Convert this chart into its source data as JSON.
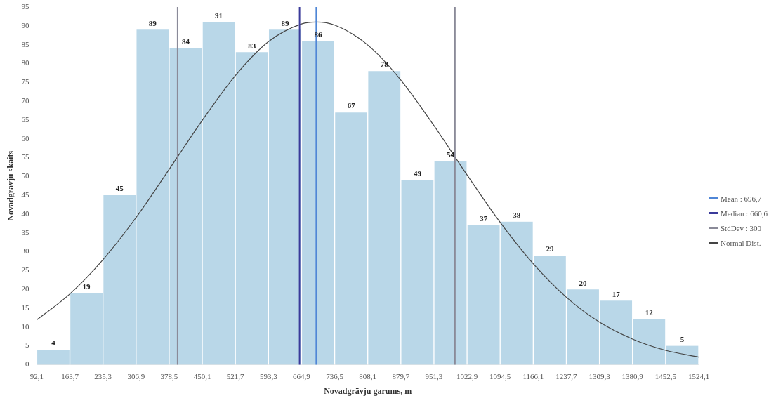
{
  "chart_data": {
    "type": "histogram",
    "xlabel": "Novadgrāvju garums, m",
    "ylabel": "Novadgrāvju skaits",
    "bins": [
      92.1,
      163.7,
      235.3,
      306.9,
      378.5,
      450.1,
      521.7,
      593.3,
      664.9,
      736.5,
      808.1,
      879.7,
      951.3,
      1022.9,
      1094.5,
      1166.1,
      1237.7,
      1309.3,
      1380.9,
      1452.5,
      1524.1
    ],
    "values": [
      4,
      19,
      45,
      89,
      84,
      91,
      83,
      89,
      86,
      67,
      78,
      49,
      54,
      37,
      38,
      29,
      20,
      17,
      12,
      5
    ],
    "color": "#b9d7e8",
    "value_labels": [
      "4",
      "19",
      "45",
      "89",
      "84",
      "91",
      "83",
      "89",
      "86",
      "67",
      "78",
      "49",
      "54",
      "37",
      "38",
      "29",
      "20",
      "17",
      "12",
      "5"
    ],
    "annotations": [
      "Mean : 696,7",
      "Median : 660,6",
      "StdDev : 300"
    ],
    "series": [
      {
        "type": "line",
        "name": "Normal Dist.",
        "color": "#444444",
        "x": [
          92.1,
          163.7,
          235.3,
          306.9,
          378.5,
          450.1,
          521.7,
          593.3,
          664.9,
          696.7,
          736.5,
          808.1,
          879.7,
          951.3,
          1022.9,
          1094.5,
          1166.1,
          1237.7,
          1309.3,
          1380.9,
          1452.5,
          1524.1
        ],
        "values": [
          11.9,
          18.8,
          27.9,
          39.1,
          51.9,
          64.9,
          76.8,
          85.8,
          90.5,
          91,
          90.2,
          84.9,
          75.6,
          63.5,
          50.4,
          37.8,
          26.8,
          17.9,
          11.3,
          6.8,
          3.8,
          2.0
        ]
      }
    ],
    "ref_lines": [
      {
        "axis": "x",
        "value": 696.7,
        "color": "#4f86d6"
      },
      {
        "axis": "x",
        "value": 660.6,
        "color": "#3a3a9a"
      },
      {
        "axis": "x",
        "value": 396.7,
        "color": "#8a8a98"
      },
      {
        "axis": "x",
        "value": 996.7,
        "color": "#8a8a98"
      }
    ],
    "xlim": [
      92.1,
      1524.1
    ],
    "xticks": [
      {
        "value": 92.1,
        "label": "92,1"
      },
      {
        "value": 163.7,
        "label": "163,7"
      },
      {
        "value": 235.3,
        "label": "235,3"
      },
      {
        "value": 306.9,
        "label": "306,9"
      },
      {
        "value": 378.5,
        "label": "378,5"
      },
      {
        "value": 450.1,
        "label": "450,1"
      },
      {
        "value": 521.7,
        "label": "521,7"
      },
      {
        "value": 593.3,
        "label": "593,3"
      },
      {
        "value": 664.9,
        "label": "664,9"
      },
      {
        "value": 736.5,
        "label": "736,5"
      },
      {
        "value": 808.1,
        "label": "808,1"
      },
      {
        "value": 879.7,
        "label": "879,7"
      },
      {
        "value": 951.3,
        "label": "951,3"
      },
      {
        "value": 1022.9,
        "label": "1022,9"
      },
      {
        "value": 1094.5,
        "label": "1094,5"
      },
      {
        "value": 1166.1,
        "label": "1166,1"
      },
      {
        "value": 1237.7,
        "label": "1237,7"
      },
      {
        "value": 1309.3,
        "label": "1309,3"
      },
      {
        "value": 1380.9,
        "label": "1380,9"
      },
      {
        "value": 1452.5,
        "label": "1452,5"
      },
      {
        "value": 1524.1,
        "label": "1524,1"
      }
    ],
    "ylim": [
      0,
      95
    ],
    "yticks": [
      0,
      5,
      10,
      15,
      20,
      25,
      30,
      35,
      40,
      45,
      50,
      55,
      60,
      65,
      70,
      75,
      80,
      85,
      90,
      95
    ],
    "grid": false,
    "legend": "right"
  }
}
